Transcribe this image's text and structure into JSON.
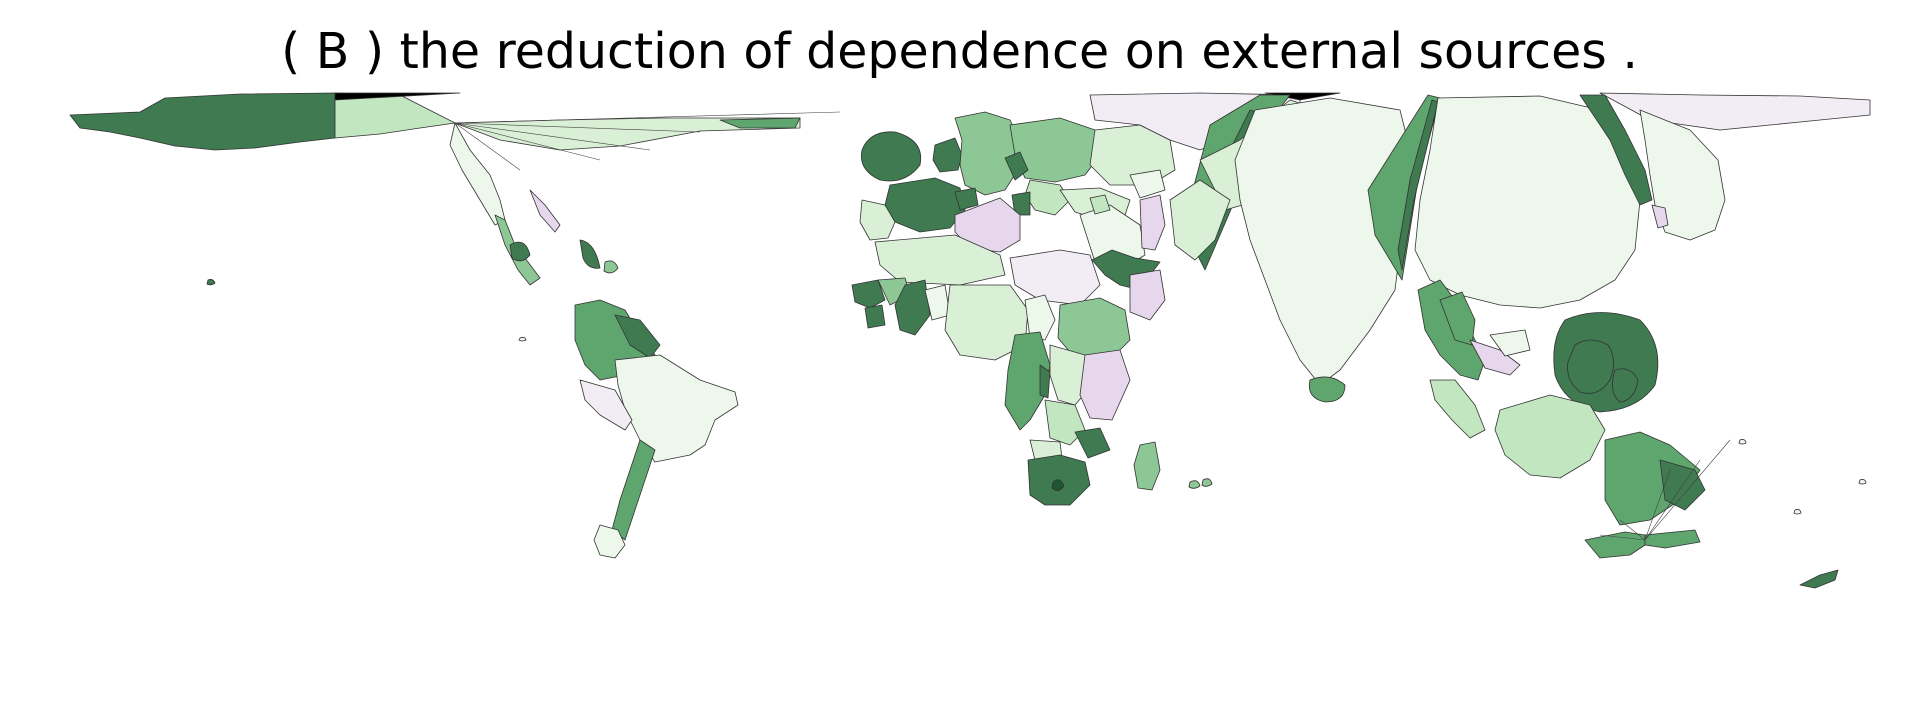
{
  "figure": {
    "title": "( B ) the reduction of dependence on external sources ."
  },
  "map": {
    "type": "world-cartogram-choropleth",
    "palette": {
      "darkest_green": "#1e5631",
      "dark_green": "#3f7a51",
      "mid_green": "#5fa56e",
      "green": "#8cc795",
      "light_green": "#c2e6c0",
      "pale_green": "#daf0d6",
      "very_pale_green": "#edf7eb",
      "pale_purple": "#f2ecf5",
      "light_purple": "#e6d7ec",
      "black": "#000000"
    },
    "regions": [
      {
        "name": "north-america-west",
        "fill": "dark_green"
      },
      {
        "name": "north-america-east",
        "fill": "light_green"
      },
      {
        "name": "central-america",
        "fill": "very_pale_green"
      },
      {
        "name": "caribbean",
        "fill": "dark_green"
      },
      {
        "name": "south-america-north",
        "fill": "mid_green"
      },
      {
        "name": "south-america-east",
        "fill": "very_pale_green"
      },
      {
        "name": "south-america-south",
        "fill": "mid_green"
      },
      {
        "name": "europe-west",
        "fill": "dark_green"
      },
      {
        "name": "europe-central",
        "fill": "green"
      },
      {
        "name": "europe-east",
        "fill": "pale_green"
      },
      {
        "name": "north-africa",
        "fill": "light_purple"
      },
      {
        "name": "west-africa",
        "fill": "dark_green"
      },
      {
        "name": "central-africa",
        "fill": "pale_green"
      },
      {
        "name": "east-africa",
        "fill": "green"
      },
      {
        "name": "middle-east",
        "fill": "pale_purple"
      },
      {
        "name": "horn-of-africa",
        "fill": "dark_green"
      },
      {
        "name": "southern-africa",
        "fill": "dark_green"
      },
      {
        "name": "madagascar",
        "fill": "green"
      },
      {
        "name": "russia",
        "fill": "pale_purple"
      },
      {
        "name": "central-asia",
        "fill": "pale_green"
      },
      {
        "name": "india",
        "fill": "very_pale_green"
      },
      {
        "name": "sri-lanka",
        "fill": "mid_green"
      },
      {
        "name": "china",
        "fill": "very_pale_green"
      },
      {
        "name": "korea-wedge",
        "fill": "mid_green"
      },
      {
        "name": "japan-arc",
        "fill": "dark_green"
      },
      {
        "name": "japan-east",
        "fill": "very_pale_green"
      },
      {
        "name": "southeast-asia",
        "fill": "mid_green"
      },
      {
        "name": "philippines-ring",
        "fill": "dark_green"
      },
      {
        "name": "indonesia",
        "fill": "light_green"
      },
      {
        "name": "papua",
        "fill": "mid_green"
      },
      {
        "name": "australia",
        "fill": "mid_green"
      },
      {
        "name": "new-zealand",
        "fill": "dark_green"
      }
    ]
  }
}
